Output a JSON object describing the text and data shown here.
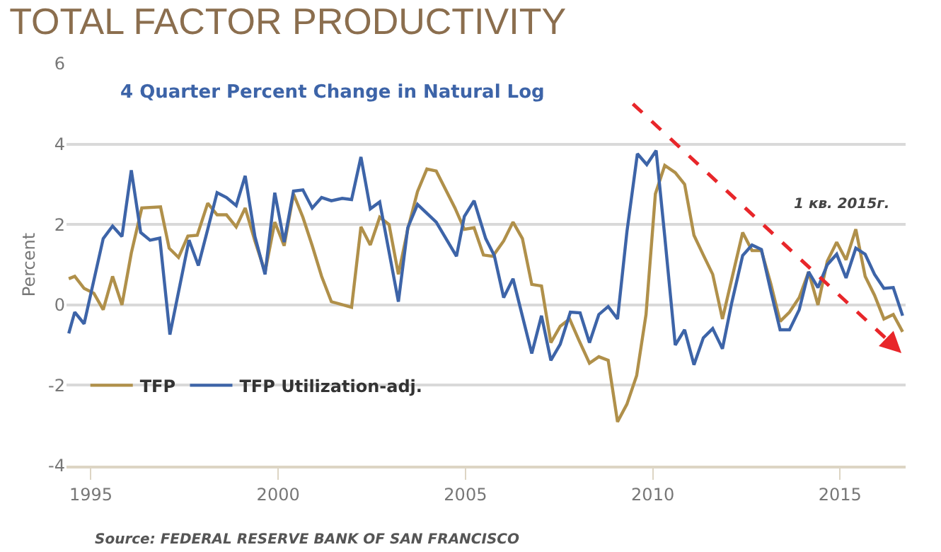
{
  "chart_data": {
    "type": "line",
    "title": "TOTAL FACTOR PRODUCTIVITY",
    "subtitle": "4 Quarter Percent Change in Natural Log",
    "ylabel": "Percent",
    "annotations": [
      "1 кв. 2015г.",
      "Source: FEDERAL RESERVE BANK OF SAN FRANCISCO"
    ],
    "xlim": [
      1994.35,
      2016.75
    ],
    "xticks": [
      1995,
      2000,
      2005,
      2010,
      2015
    ],
    "ylim": [
      -4,
      6
    ],
    "yticks": [
      -4,
      -2,
      0,
      2,
      4,
      6
    ],
    "grid": "y",
    "legend": "bottom left",
    "series": [
      {
        "name": "TFP",
        "color": "#b0904a",
        "x": [
          1994.41,
          1994.57,
          1994.82,
          1995.08,
          1995.33,
          1995.58,
          1995.83,
          1996.08,
          1996.36,
          1996.86,
          1997.09,
          1997.34,
          1997.59,
          1997.84,
          1998.12,
          1998.37,
          1998.62,
          1998.88,
          1999.12,
          1999.38,
          1999.65,
          1999.91,
          2000.16,
          2000.41,
          2000.66,
          2000.91,
          2001.16,
          2001.42,
          2001.96,
          2002.21,
          2002.46,
          2002.71,
          2002.96,
          2003.21,
          2003.46,
          2003.72,
          2003.97,
          2004.22,
          2004.72,
          2004.97,
          2005.23,
          2005.48,
          2005.73,
          2006.02,
          2006.27,
          2006.52,
          2006.77,
          2007.03,
          2007.28,
          2007.53,
          2007.78,
          2008.03,
          2008.31,
          2008.56,
          2008.81,
          2009.06,
          2009.31,
          2009.57,
          2009.82,
          2010.07,
          2010.32,
          2010.6,
          2010.85,
          2011.1,
          2011.35,
          2011.6,
          2011.86,
          2012.11,
          2012.4,
          2012.65,
          2012.9,
          2013.15,
          2013.4,
          2013.65,
          2013.91,
          2014.16,
          2014.41,
          2014.66,
          2014.91,
          2015.16,
          2015.42,
          2015.67,
          2015.92,
          2016.17,
          2016.42,
          2016.67
        ],
        "values": [
          0.65,
          0.71,
          0.41,
          0.29,
          -0.12,
          0.71,
          0.0,
          1.29,
          2.41,
          2.44,
          1.41,
          1.18,
          1.71,
          1.73,
          2.53,
          2.24,
          2.24,
          1.94,
          2.41,
          1.59,
          0.82,
          2.06,
          1.47,
          2.76,
          2.18,
          1.47,
          0.71,
          0.08,
          -0.06,
          1.94,
          1.49,
          2.18,
          2.0,
          0.76,
          1.88,
          2.82,
          3.38,
          3.33,
          2.41,
          1.88,
          1.92,
          1.24,
          1.21,
          1.59,
          2.06,
          1.65,
          0.51,
          0.47,
          -0.94,
          -0.53,
          -0.35,
          -0.88,
          -1.45,
          -1.29,
          -1.38,
          -2.91,
          -2.47,
          -1.76,
          -0.24,
          2.76,
          3.47,
          3.29,
          3.0,
          1.73,
          1.24,
          0.76,
          -0.35,
          0.65,
          1.8,
          1.35,
          1.35,
          0.53,
          -0.41,
          -0.18,
          0.18,
          0.82,
          0.0,
          1.09,
          1.56,
          1.12,
          1.88,
          0.71,
          0.24,
          -0.35,
          -0.24,
          -0.67
        ]
      },
      {
        "name": "TFP Utilization-adj.",
        "color": "#3d64a8",
        "x": [
          1994.41,
          1994.57,
          1994.82,
          1995.33,
          1995.58,
          1995.83,
          1996.08,
          1996.33,
          1996.58,
          1996.84,
          1997.11,
          1997.62,
          1997.87,
          1998.12,
          1998.37,
          1998.62,
          1998.88,
          1999.12,
          1999.38,
          1999.65,
          1999.91,
          2000.16,
          2000.41,
          2000.66,
          2000.91,
          2001.16,
          2001.42,
          2001.71,
          2001.96,
          2002.21,
          2002.46,
          2002.71,
          2003.21,
          2003.46,
          2003.72,
          2004.22,
          2004.76,
          2004.97,
          2005.23,
          2005.54,
          2005.77,
          2006.02,
          2006.27,
          2006.77,
          2007.03,
          2007.28,
          2007.53,
          2007.8,
          2008.06,
          2008.31,
          2008.56,
          2008.81,
          2009.06,
          2009.31,
          2009.59,
          2009.84,
          2010.09,
          2010.32,
          2010.6,
          2010.85,
          2011.1,
          2011.35,
          2011.6,
          2011.86,
          2012.11,
          2012.4,
          2012.65,
          2012.9,
          2013.15,
          2013.4,
          2013.65,
          2013.91,
          2014.16,
          2014.41,
          2014.66,
          2014.91,
          2015.16,
          2015.42,
          2015.67,
          2015.92,
          2016.17,
          2016.42,
          2016.67
        ],
        "values": [
          -0.71,
          -0.18,
          -0.47,
          1.65,
          1.96,
          1.7,
          3.35,
          1.8,
          1.61,
          1.66,
          -0.74,
          1.61,
          0.98,
          1.88,
          2.79,
          2.67,
          2.47,
          3.21,
          1.7,
          0.76,
          2.79,
          1.56,
          2.83,
          2.86,
          2.41,
          2.67,
          2.59,
          2.65,
          2.62,
          3.68,
          2.39,
          2.56,
          0.08,
          1.92,
          2.5,
          2.06,
          1.21,
          2.2,
          2.59,
          1.65,
          1.23,
          0.18,
          0.65,
          -1.21,
          -0.27,
          -1.38,
          -0.98,
          -0.18,
          -0.2,
          -0.94,
          -0.24,
          -0.04,
          -0.35,
          1.82,
          3.76,
          3.49,
          3.84,
          1.7,
          -1.0,
          -0.62,
          -1.49,
          -0.82,
          -0.59,
          -1.09,
          0.06,
          1.23,
          1.49,
          1.38,
          0.35,
          -0.62,
          -0.62,
          -0.12,
          0.82,
          0.43,
          1.0,
          1.26,
          0.67,
          1.41,
          1.26,
          0.76,
          0.41,
          0.43,
          -0.27
        ]
      }
    ]
  }
}
